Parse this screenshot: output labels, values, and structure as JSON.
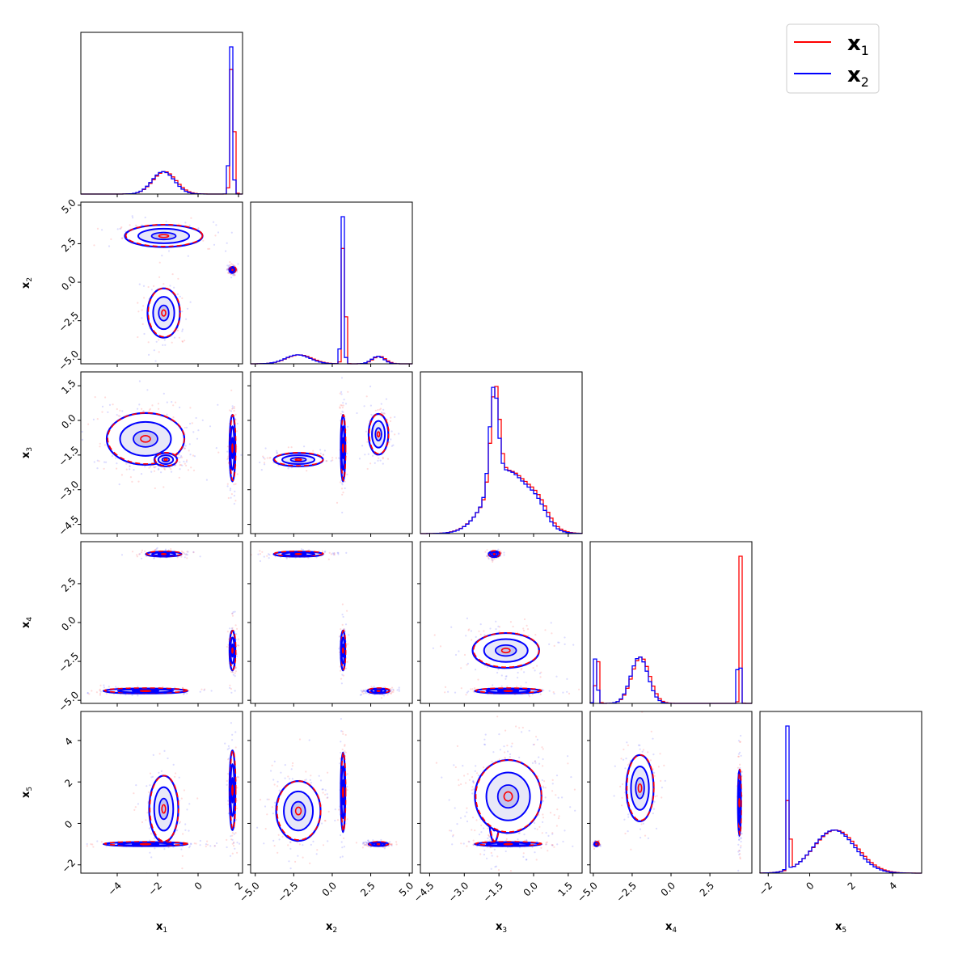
{
  "chart_data": {
    "type": "corner",
    "title": "",
    "parameters": [
      {
        "label": "x",
        "sub": "1",
        "range": [
          -5.8,
          2.2
        ],
        "ticks": [
          -4,
          -2,
          0,
          2
        ],
        "tick_labels": [
          "−4",
          "−2",
          "0",
          "2"
        ]
      },
      {
        "label": "x",
        "sub": "2",
        "range": [
          -5.3,
          5.2
        ],
        "ticks": [
          -5.0,
          -2.5,
          0.0,
          2.5,
          5.0
        ],
        "tick_labels": [
          "−5.0",
          "−2.5",
          "0.0",
          "2.5",
          "5.0"
        ]
      },
      {
        "label": "x",
        "sub": "3",
        "range": [
          -4.9,
          2.1
        ],
        "ticks": [
          -4.5,
          -3.0,
          -1.5,
          0.0,
          1.5
        ],
        "tick_labels": [
          "−4.5",
          "−3.0",
          "−1.5",
          "0.0",
          "1.5"
        ]
      },
      {
        "label": "x",
        "sub": "4",
        "range": [
          -5.2,
          5.2
        ],
        "ticks": [
          -5.0,
          -2.5,
          0.0,
          2.5
        ],
        "tick_labels": [
          "−5.0",
          "−2.5",
          "0.0",
          "2.5"
        ]
      },
      {
        "label": "x",
        "sub": "5",
        "range": [
          -2.4,
          5.4
        ],
        "ticks": [
          -2,
          0,
          2,
          4
        ],
        "tick_labels": [
          "−2",
          "0",
          "2",
          "4"
        ]
      }
    ],
    "y_tick_labels": {
      "1": [
        "−5.0",
        "−2.5",
        "0.0",
        "2.5",
        "5.0"
      ],
      "2": [
        "−4.5",
        "−3.0",
        "−1.5",
        "0.0",
        "1.5"
      ],
      "3": [
        "−5.0",
        "−2.5",
        "0.0",
        "2.5"
      ],
      "4": [
        "−2",
        "0",
        "2",
        "4"
      ]
    },
    "series": [
      {
        "name": "x",
        "sub": "1",
        "color": "#ff0000"
      },
      {
        "name": "x",
        "sub": "2",
        "color": "#0000ff"
      }
    ],
    "legend": {
      "position": "top-right"
    },
    "histograms": [
      {
        "param": 0,
        "components": [
          [
            -1.7,
            0.55,
            0.15
          ],
          [
            1.65,
            0.08,
            1.0
          ]
        ]
      },
      {
        "param": 1,
        "components": [
          [
            0.7,
            0.09,
            1.0
          ],
          [
            -2.2,
            0.8,
            0.06
          ],
          [
            3.0,
            0.4,
            0.05
          ]
        ]
      },
      {
        "param": 2,
        "components": [
          [
            -1.7,
            0.18,
            0.55
          ],
          [
            -1.1,
            0.9,
            0.35
          ],
          [
            0.2,
            0.4,
            0.08
          ]
        ]
      },
      {
        "param": 3,
        "components": [
          [
            -4.8,
            0.09,
            0.35
          ],
          [
            -2.0,
            0.55,
            0.3
          ],
          [
            4.4,
            0.06,
            1.0
          ]
        ]
      },
      {
        "param": 4,
        "components": [
          [
            -1.05,
            0.05,
            1.0
          ],
          [
            1.2,
            1.0,
            0.3
          ]
        ]
      }
    ],
    "blobs": [
      {
        "xi": 0,
        "yi": 1,
        "cx": -1.7,
        "cy": -2.0,
        "sx": 0.5,
        "sy": 1.0
      },
      {
        "xi": 0,
        "yi": 1,
        "cx": -1.7,
        "cy": 3.0,
        "sx": 1.2,
        "sy": 0.45
      },
      {
        "xi": 0,
        "yi": 1,
        "cx": 1.7,
        "cy": 0.8,
        "sx": 0.1,
        "sy": 0.12
      },
      {
        "xi": 0,
        "yi": 2,
        "cx": -2.6,
        "cy": -0.8,
        "sx": 1.2,
        "sy": 0.7
      },
      {
        "xi": 0,
        "yi": 2,
        "cx": -1.6,
        "cy": -1.7,
        "sx": 0.35,
        "sy": 0.18
      },
      {
        "xi": 0,
        "yi": 2,
        "cx": 1.7,
        "cy": -1.2,
        "sx": 0.09,
        "sy": 0.9
      },
      {
        "xi": 0,
        "yi": 3,
        "cx": -1.7,
        "cy": 4.4,
        "sx": 0.55,
        "sy": 0.1
      },
      {
        "xi": 0,
        "yi": 3,
        "cx": -2.6,
        "cy": -4.4,
        "sx": 1.3,
        "sy": 0.1
      },
      {
        "xi": 0,
        "yi": 3,
        "cx": 1.7,
        "cy": -1.8,
        "sx": 0.09,
        "sy": 0.8
      },
      {
        "xi": 0,
        "yi": 4,
        "cx": -1.7,
        "cy": 0.7,
        "sx": 0.45,
        "sy": 1.0
      },
      {
        "xi": 0,
        "yi": 4,
        "cx": -2.6,
        "cy": -1.0,
        "sx": 1.3,
        "sy": 0.06
      },
      {
        "xi": 0,
        "yi": 4,
        "cx": 1.7,
        "cy": 1.6,
        "sx": 0.09,
        "sy": 1.2
      },
      {
        "xi": 1,
        "yi": 2,
        "cx": -2.2,
        "cy": -1.7,
        "sx": 1.0,
        "sy": 0.18
      },
      {
        "xi": 1,
        "yi": 2,
        "cx": 0.7,
        "cy": -1.2,
        "sx": 0.09,
        "sy": 0.9
      },
      {
        "xi": 1,
        "yi": 2,
        "cx": 3.0,
        "cy": -0.6,
        "sx": 0.4,
        "sy": 0.55
      },
      {
        "xi": 1,
        "yi": 3,
        "cx": -2.2,
        "cy": 4.4,
        "sx": 1.0,
        "sy": 0.1
      },
      {
        "xi": 1,
        "yi": 3,
        "cx": 0.7,
        "cy": -1.8,
        "sx": 0.09,
        "sy": 0.8
      },
      {
        "xi": 1,
        "yi": 3,
        "cx": 3.0,
        "cy": -4.4,
        "sx": 0.45,
        "sy": 0.1
      },
      {
        "xi": 1,
        "yi": 4,
        "cx": -2.2,
        "cy": 0.6,
        "sx": 0.9,
        "sy": 0.9
      },
      {
        "xi": 1,
        "yi": 4,
        "cx": 0.7,
        "cy": 1.5,
        "sx": 0.09,
        "sy": 1.2
      },
      {
        "xi": 1,
        "yi": 4,
        "cx": 3.0,
        "cy": -1.0,
        "sx": 0.4,
        "sy": 0.06
      },
      {
        "xi": 2,
        "yi": 3,
        "cx": -1.7,
        "cy": 4.4,
        "sx": 0.15,
        "sy": 0.12
      },
      {
        "xi": 2,
        "yi": 3,
        "cx": -1.2,
        "cy": -1.8,
        "sx": 0.9,
        "sy": 0.7
      },
      {
        "xi": 2,
        "yi": 3,
        "cx": -1.1,
        "cy": -4.4,
        "sx": 0.9,
        "sy": 0.1
      },
      {
        "xi": 2,
        "yi": 4,
        "cx": -1.7,
        "cy": 0.7,
        "sx": 0.15,
        "sy": 1.0
      },
      {
        "xi": 2,
        "yi": 4,
        "cx": -1.1,
        "cy": 1.3,
        "sx": 0.9,
        "sy": 1.1
      },
      {
        "xi": 2,
        "yi": 4,
        "cx": -1.1,
        "cy": -1.0,
        "sx": 0.9,
        "sy": 0.06
      },
      {
        "xi": 3,
        "yi": 4,
        "cx": -2.0,
        "cy": 1.7,
        "sx": 0.55,
        "sy": 1.0
      },
      {
        "xi": 3,
        "yi": 4,
        "cx": -4.8,
        "cy": -1.0,
        "sx": 0.09,
        "sy": 0.06
      },
      {
        "xi": 3,
        "yi": 4,
        "cx": 4.4,
        "cy": 1.0,
        "sx": 0.06,
        "sy": 1.0
      }
    ]
  }
}
